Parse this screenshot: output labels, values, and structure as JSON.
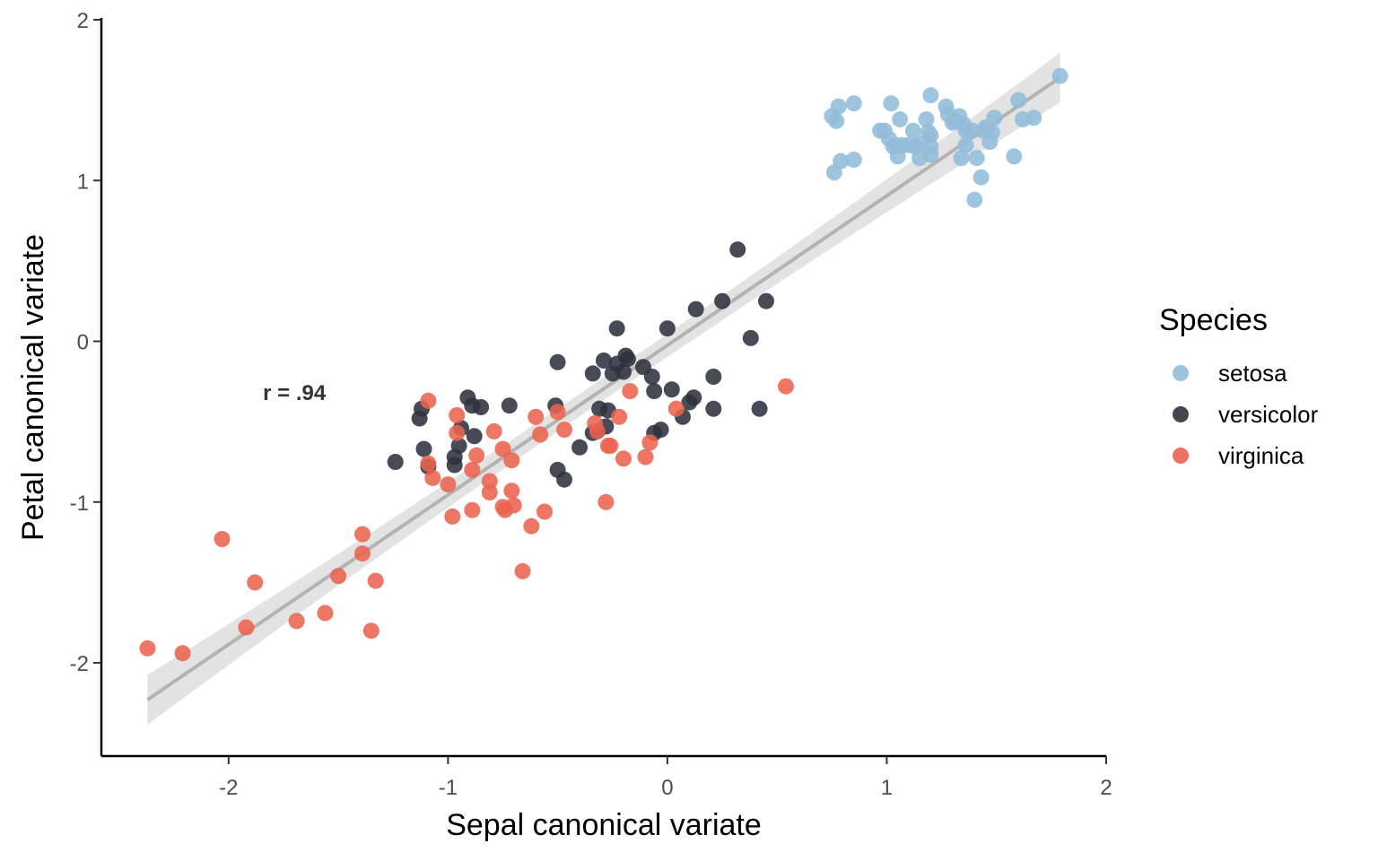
{
  "chart_data": {
    "type": "scatter",
    "xlabel": "Sepal canonical variate",
    "ylabel": "Petal canonical variate",
    "xlim": [
      -2.58,
      2.0
    ],
    "ylim": [
      -2.58,
      2.0
    ],
    "x_ticks": [
      -2,
      -1,
      0,
      1,
      2
    ],
    "y_ticks": [
      -2,
      -1,
      0,
      1,
      2
    ],
    "grid": false,
    "annotation": {
      "text": "r = .94",
      "x": -1.7,
      "y": -0.32
    },
    "fit_line": {
      "x": [
        -2.37,
        1.79
      ],
      "y": [
        -2.23,
        1.64
      ],
      "color": "#b3b3b3",
      "band_color": "#d9d9d9"
    },
    "legend": {
      "title": "Species",
      "placement": "right"
    },
    "series": [
      {
        "name": "setosa",
        "color": "#92bcd8",
        "points": [
          [
            0.75,
            1.4
          ],
          [
            0.78,
            1.46
          ],
          [
            0.77,
            1.37
          ],
          [
            0.85,
            1.48
          ],
          [
            0.76,
            1.05
          ],
          [
            0.79,
            1.12
          ],
          [
            0.85,
            1.13
          ],
          [
            0.97,
            1.31
          ],
          [
            0.99,
            1.31
          ],
          [
            1.02,
            1.48
          ],
          [
            1.01,
            1.26
          ],
          [
            1.03,
            1.21
          ],
          [
            1.05,
            1.15
          ],
          [
            1.06,
            1.38
          ],
          [
            1.07,
            1.22
          ],
          [
            1.1,
            1.22
          ],
          [
            1.12,
            1.31
          ],
          [
            1.15,
            1.23
          ],
          [
            1.15,
            1.14
          ],
          [
            1.18,
            1.38
          ],
          [
            1.19,
            1.3
          ],
          [
            1.2,
            1.53
          ],
          [
            1.2,
            1.28
          ],
          [
            1.2,
            1.21
          ],
          [
            1.2,
            1.16
          ],
          [
            1.27,
            1.46
          ],
          [
            1.28,
            1.41
          ],
          [
            1.3,
            1.36
          ],
          [
            1.33,
            1.4
          ],
          [
            1.34,
            1.14
          ],
          [
            1.35,
            1.35
          ],
          [
            1.36,
            1.31
          ],
          [
            1.36,
            1.22
          ],
          [
            1.39,
            1.31
          ],
          [
            1.4,
            0.88
          ],
          [
            1.41,
            1.14
          ],
          [
            1.43,
            1.02
          ],
          [
            1.44,
            1.31
          ],
          [
            1.47,
            1.24
          ],
          [
            1.48,
            1.3
          ],
          [
            1.49,
            1.39
          ],
          [
            1.58,
            1.15
          ],
          [
            1.6,
            1.5
          ],
          [
            1.62,
            1.38
          ],
          [
            1.67,
            1.39
          ],
          [
            1.79,
            1.65
          ],
          [
            1.04,
            1.22
          ],
          [
            1.13,
            1.21
          ],
          [
            1.31,
            1.37
          ],
          [
            1.45,
            1.33
          ]
        ]
      },
      {
        "name": "versicolor",
        "color": "#2d323d",
        "points": [
          [
            -1.24,
            -0.75
          ],
          [
            -1.13,
            -0.48
          ],
          [
            -1.12,
            -0.42
          ],
          [
            -1.11,
            -0.67
          ],
          [
            -1.09,
            -0.78
          ],
          [
            -0.97,
            -0.77
          ],
          [
            -0.97,
            -0.72
          ],
          [
            -0.95,
            -0.65
          ],
          [
            -0.94,
            -0.54
          ],
          [
            -0.91,
            -0.35
          ],
          [
            -0.89,
            -0.4
          ],
          [
            -0.88,
            -0.59
          ],
          [
            -0.85,
            -0.41
          ],
          [
            -0.72,
            -0.4
          ],
          [
            -0.51,
            -0.4
          ],
          [
            -0.5,
            -0.13
          ],
          [
            -0.5,
            -0.8
          ],
          [
            -0.47,
            -0.86
          ],
          [
            -0.4,
            -0.66
          ],
          [
            -0.34,
            -0.2
          ],
          [
            -0.32,
            -0.56
          ],
          [
            -0.31,
            -0.42
          ],
          [
            -0.29,
            -0.12
          ],
          [
            -0.28,
            -0.53
          ],
          [
            -0.27,
            -0.43
          ],
          [
            -0.23,
            0.08
          ],
          [
            -0.23,
            -0.14
          ],
          [
            -0.2,
            -0.19
          ],
          [
            -0.19,
            -0.09
          ],
          [
            -0.18,
            -0.11
          ],
          [
            -0.11,
            -0.16
          ],
          [
            -0.07,
            -0.22
          ],
          [
            -0.06,
            -0.31
          ],
          [
            -0.06,
            -0.57
          ],
          [
            -0.03,
            -0.55
          ],
          [
            0.0,
            0.08
          ],
          [
            0.02,
            -0.3
          ],
          [
            0.07,
            -0.47
          ],
          [
            0.1,
            -0.38
          ],
          [
            0.12,
            -0.35
          ],
          [
            0.13,
            0.2
          ],
          [
            0.21,
            -0.22
          ],
          [
            0.21,
            -0.42
          ],
          [
            0.25,
            0.25
          ],
          [
            0.32,
            0.57
          ],
          [
            0.38,
            0.02
          ],
          [
            0.42,
            -0.42
          ],
          [
            0.45,
            0.25
          ],
          [
            -0.34,
            -0.57
          ],
          [
            -0.25,
            -0.2
          ]
        ]
      },
      {
        "name": "virginica",
        "color": "#ea6350",
        "points": [
          [
            -2.37,
            -1.91
          ],
          [
            -2.21,
            -1.94
          ],
          [
            -2.03,
            -1.23
          ],
          [
            -1.92,
            -1.78
          ],
          [
            -1.88,
            -1.5
          ],
          [
            -1.69,
            -1.74
          ],
          [
            -1.56,
            -1.69
          ],
          [
            -1.5,
            -1.46
          ],
          [
            -1.39,
            -1.2
          ],
          [
            -1.39,
            -1.32
          ],
          [
            -1.35,
            -1.8
          ],
          [
            -1.33,
            -1.49
          ],
          [
            -1.09,
            -0.37
          ],
          [
            -1.09,
            -0.76
          ],
          [
            -1.07,
            -0.85
          ],
          [
            -1.0,
            -0.89
          ],
          [
            -0.98,
            -1.09
          ],
          [
            -0.96,
            -0.46
          ],
          [
            -0.96,
            -0.57
          ],
          [
            -0.89,
            -0.8
          ],
          [
            -0.89,
            -1.05
          ],
          [
            -0.87,
            -0.71
          ],
          [
            -0.81,
            -0.87
          ],
          [
            -0.81,
            -0.94
          ],
          [
            -0.79,
            -0.56
          ],
          [
            -0.75,
            -0.67
          ],
          [
            -0.75,
            -1.03
          ],
          [
            -0.74,
            -1.05
          ],
          [
            -0.71,
            -0.74
          ],
          [
            -0.71,
            -0.93
          ],
          [
            -0.7,
            -1.02
          ],
          [
            -0.66,
            -1.43
          ],
          [
            -0.62,
            -1.15
          ],
          [
            -0.6,
            -0.47
          ],
          [
            -0.58,
            -0.58
          ],
          [
            -0.56,
            -1.06
          ],
          [
            -0.47,
            -0.55
          ],
          [
            -0.33,
            -0.51
          ],
          [
            -0.28,
            -1.0
          ],
          [
            -0.27,
            -0.65
          ],
          [
            -0.26,
            -0.65
          ],
          [
            -0.22,
            -0.47
          ],
          [
            -0.2,
            -0.73
          ],
          [
            -0.17,
            -0.31
          ],
          [
            -0.1,
            -0.72
          ],
          [
            -0.08,
            -0.63
          ],
          [
            0.04,
            -0.42
          ],
          [
            0.54,
            -0.28
          ],
          [
            -0.5,
            -0.44
          ],
          [
            -0.32,
            -0.56
          ]
        ]
      }
    ]
  }
}
